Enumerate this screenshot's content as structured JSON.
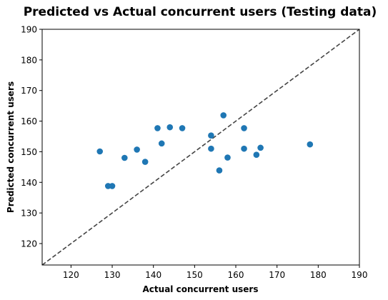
{
  "chart_data": {
    "type": "scatter",
    "title": "Predicted vs Actual concurrent users (Testing data)",
    "xlabel": "Actual concurrent users",
    "ylabel": "Predicted concurrent users",
    "xlim": [
      113,
      190
    ],
    "ylim": [
      113,
      190
    ],
    "x_ticks": [
      120,
      130,
      140,
      150,
      160,
      170,
      180,
      190
    ],
    "y_ticks": [
      120,
      130,
      140,
      150,
      160,
      170,
      180,
      190
    ],
    "grid": false,
    "reference_line": "y = x",
    "point_color": "#1f77b4",
    "line_color": "#444444",
    "points": [
      {
        "x": 127,
        "y": 150.1
      },
      {
        "x": 129,
        "y": 138.8
      },
      {
        "x": 130,
        "y": 138.8
      },
      {
        "x": 133,
        "y": 148.0
      },
      {
        "x": 136,
        "y": 150.7
      },
      {
        "x": 138,
        "y": 146.7
      },
      {
        "x": 141,
        "y": 157.7
      },
      {
        "x": 142,
        "y": 152.7
      },
      {
        "x": 144,
        "y": 158.0
      },
      {
        "x": 147,
        "y": 157.7
      },
      {
        "x": 154,
        "y": 155.3
      },
      {
        "x": 154,
        "y": 151.0
      },
      {
        "x": 156,
        "y": 143.9
      },
      {
        "x": 157,
        "y": 161.9
      },
      {
        "x": 158,
        "y": 148.1
      },
      {
        "x": 162,
        "y": 157.7
      },
      {
        "x": 162,
        "y": 151.0
      },
      {
        "x": 165,
        "y": 149.0
      },
      {
        "x": 166,
        "y": 151.3
      },
      {
        "x": 178,
        "y": 152.4
      }
    ]
  }
}
